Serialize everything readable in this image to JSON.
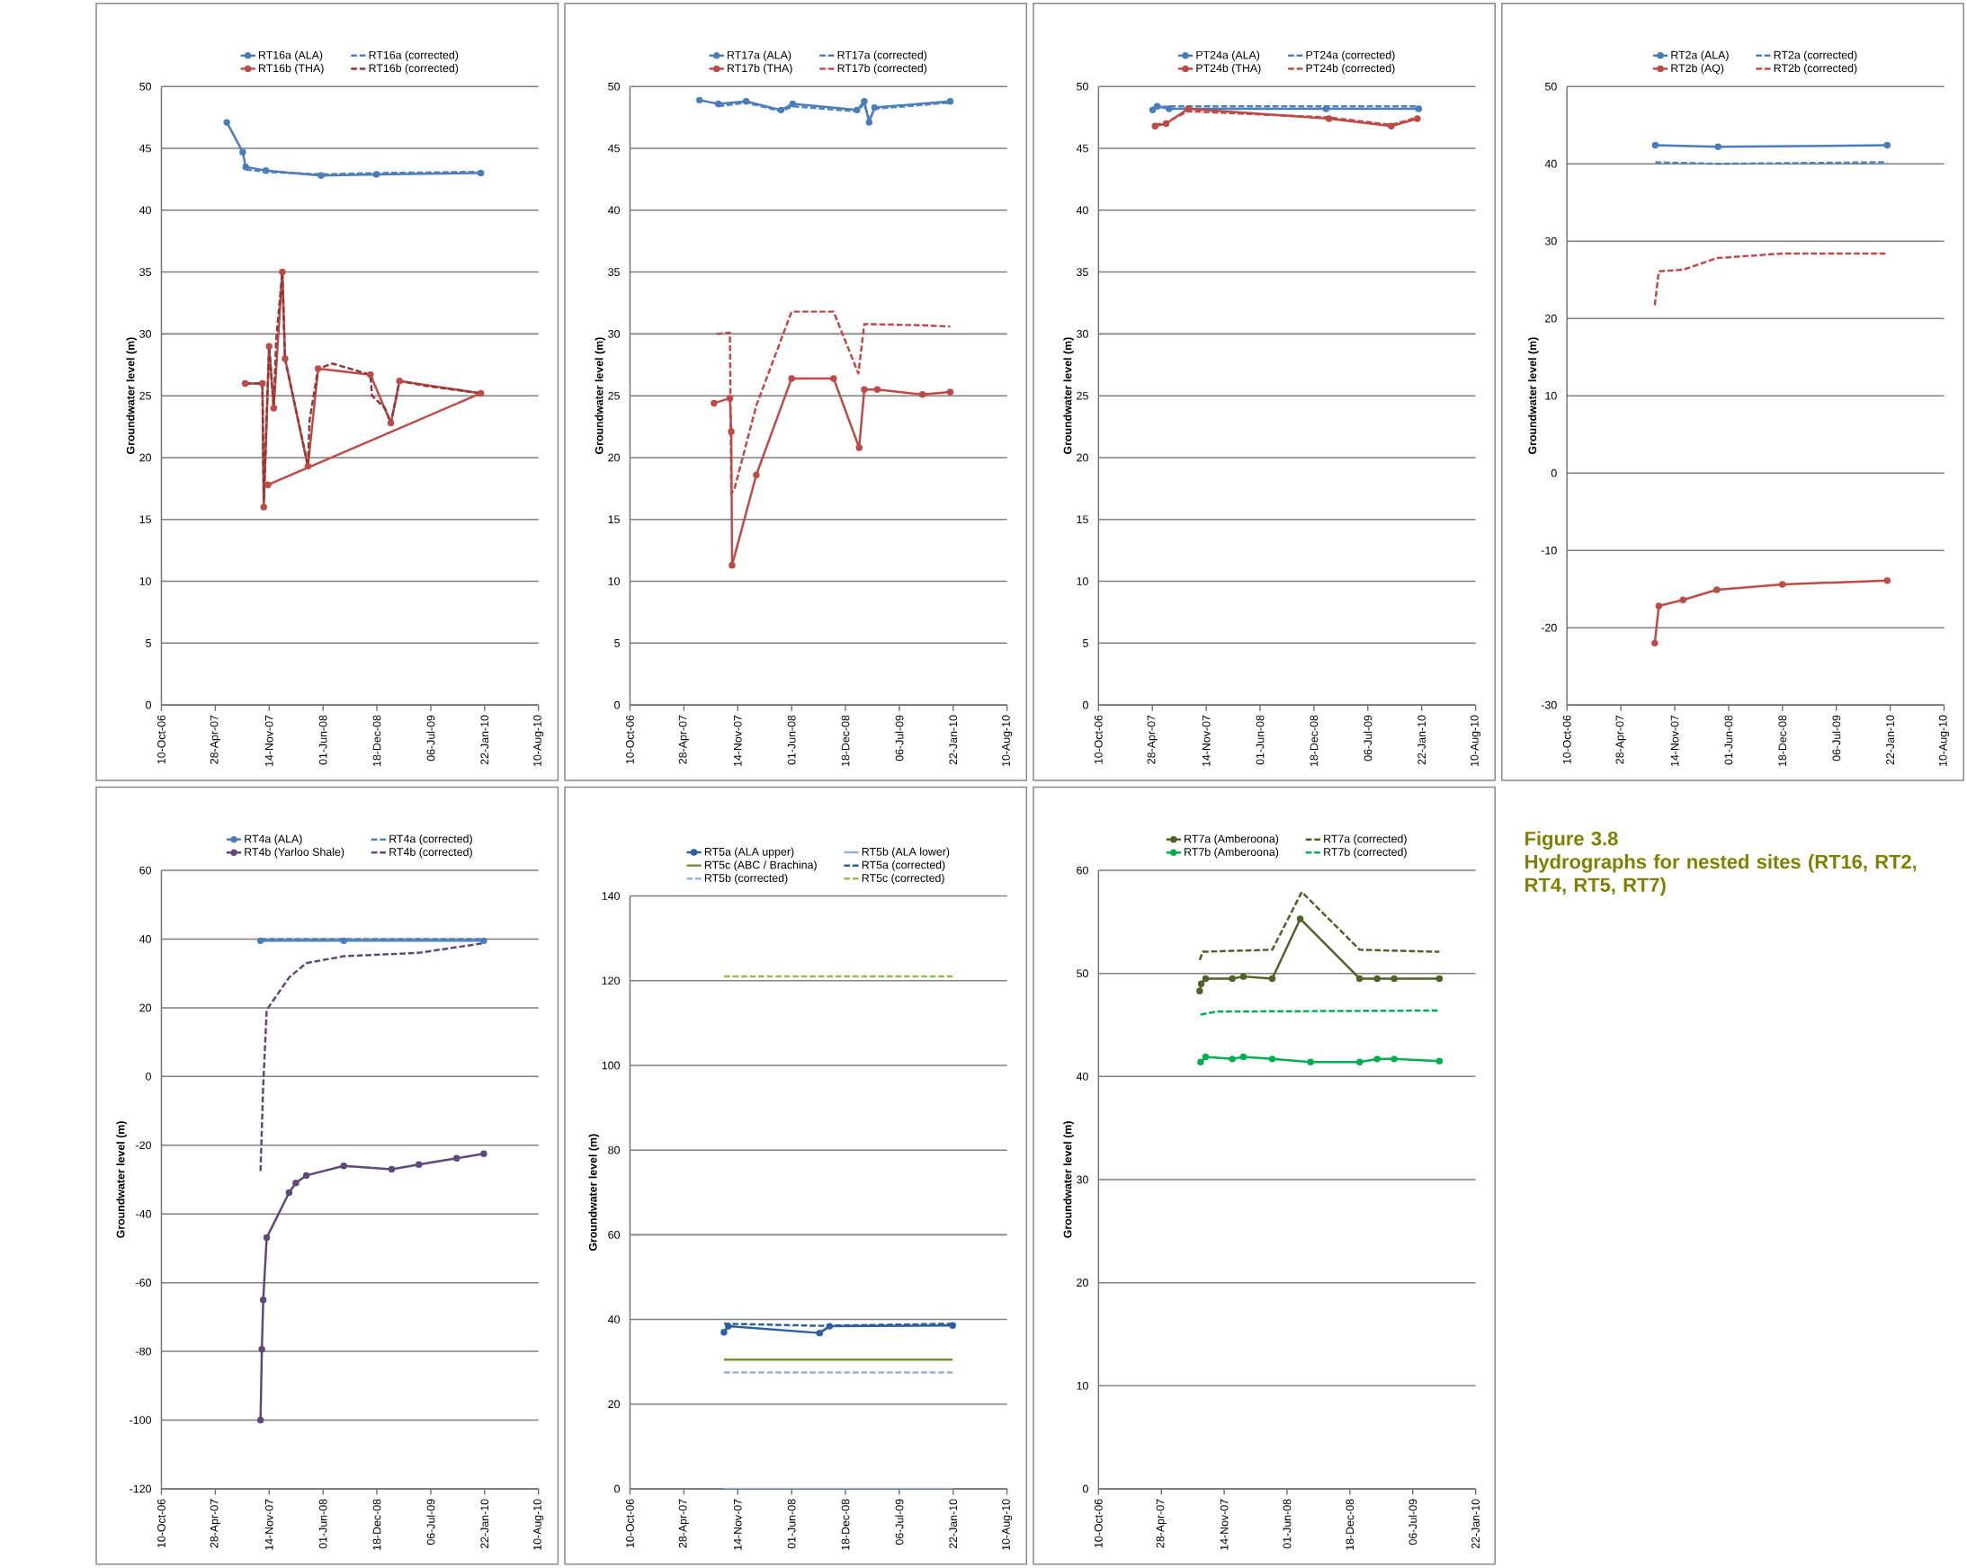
{
  "chart_data": [
    {
      "type": "line",
      "ylabel": "Groundwater level (m)",
      "grid": "y",
      "legend": "top",
      "xlim": [
        "2006-10-10",
        "2010-08-10"
      ],
      "ylim": [
        0,
        50
      ],
      "xticks": [
        {
          "value": "2006-10-10",
          "label": "10-Oct-06"
        },
        {
          "value": "2007-04-28",
          "label": "28-Apr-07"
        },
        {
          "value": "2007-11-14",
          "label": "14-Nov-07"
        },
        {
          "value": "2008-06-01",
          "label": "01-Jun-08"
        },
        {
          "value": "2008-12-18",
          "label": "18-Dec-08"
        },
        {
          "value": "2009-07-06",
          "label": "06-Jul-09"
        },
        {
          "value": "2010-01-22",
          "label": "22-Jan-10"
        },
        {
          "value": "2010-08-10",
          "label": "10-Aug-10"
        }
      ],
      "yticks": [
        0,
        5,
        10,
        15,
        20,
        25,
        30,
        35,
        40,
        45,
        50
      ],
      "series": [
        {
          "name": "RT16a (ALA)",
          "color": "#4a7ebb",
          "marker": "circle",
          "x": [
            "2007-06-10",
            "2007-08-08",
            "2007-08-19",
            "2007-11-02",
            "2008-05-25",
            "2008-12-16",
            "2010-01-08"
          ],
          "values": [
            47.1,
            44.7,
            43.5,
            43.2,
            42.8,
            42.9,
            43.0
          ]
        },
        {
          "name": "RT16a (corrected)",
          "color": "#4f81bd",
          "line_style": "dashed",
          "x": [
            "2007-08-19",
            "2007-11-02",
            "2008-05-25",
            "2008-12-16",
            "2010-01-08"
          ],
          "values": [
            43.3,
            43.1,
            42.9,
            43.0,
            43.1
          ]
        },
        {
          "name": "RT16b (THA)",
          "color": "#be4b48",
          "marker": "circle",
          "x": [
            "2007-08-17",
            "2007-10-20",
            "2007-10-25",
            "2007-11-14",
            "2007-12-01",
            "2008-01-02",
            "2008-01-12",
            "2008-04-06",
            "2008-05-14",
            "2008-11-24",
            "2009-02-08",
            "2009-03-12",
            "2010-01-08",
            "2007-11-10"
          ],
          "values": [
            26.0,
            26.0,
            16.0,
            29.0,
            24.0,
            35.0,
            28.0,
            19.3,
            27.2,
            26.7,
            22.8,
            26.2,
            25.2,
            17.8
          ]
        },
        {
          "name": "RT16b (corrected)",
          "color": "#953735",
          "line_style": "dashed",
          "x": [
            "2007-08-17",
            "2007-10-20",
            "2007-10-25",
            "2007-11-14",
            "2007-12-01",
            "2007-12-10",
            "2008-01-02",
            "2008-01-12",
            "2008-04-06",
            "2008-04-12",
            "2008-05-14",
            "2008-07-07",
            "2008-11-24",
            "2008-11-30",
            "2009-01-17",
            "2009-02-08",
            "2009-03-01",
            "2009-03-12",
            "2009-06-17",
            "2010-01-08"
          ],
          "values": [
            26.0,
            26.0,
            16.5,
            29.0,
            24.0,
            29.5,
            35.0,
            28.0,
            19.3,
            23.0,
            27.2,
            27.6,
            26.7,
            25.0,
            24.0,
            22.8,
            25.0,
            26.2,
            25.8,
            25.2
          ]
        }
      ]
    },
    {
      "type": "line",
      "ylabel": "Groundwater level (m)",
      "grid": "y",
      "legend": "top",
      "xlim": [
        "2006-10-10",
        "2010-08-10"
      ],
      "ylim": [
        0,
        50
      ],
      "xticks": [
        {
          "value": "2006-10-10",
          "label": "10-Oct-06"
        },
        {
          "value": "2007-04-28",
          "label": "28-Apr-07"
        },
        {
          "value": "2007-11-14",
          "label": "14-Nov-07"
        },
        {
          "value": "2008-06-01",
          "label": "01-Jun-08"
        },
        {
          "value": "2008-12-18",
          "label": "18-Dec-08"
        },
        {
          "value": "2009-07-06",
          "label": "06-Jul-09"
        },
        {
          "value": "2010-01-22",
          "label": "22-Jan-10"
        },
        {
          "value": "2010-08-10",
          "label": "10-Aug-10"
        }
      ],
      "yticks": [
        0,
        5,
        10,
        15,
        20,
        25,
        30,
        35,
        40,
        45,
        50
      ],
      "series": [
        {
          "name": "RT17a (ALA)",
          "color": "#4a7ebb",
          "marker": "circle",
          "x": [
            "2007-06-25",
            "2007-09-03",
            "2007-12-15",
            "2008-04-23",
            "2008-06-05",
            "2009-01-30",
            "2009-02-26",
            "2009-03-16",
            "2009-04-05",
            "2010-01-11"
          ],
          "values": [
            48.9,
            48.6,
            48.8,
            48.1,
            48.6,
            48.1,
            48.8,
            47.1,
            48.3,
            48.8
          ]
        },
        {
          "name": "RT17a (corrected)",
          "color": "#4f81bd",
          "line_style": "dashed",
          "x": [
            "2007-09-03",
            "2007-12-15",
            "2008-04-23",
            "2008-06-05",
            "2009-01-30",
            "2009-02-26",
            "2009-03-16",
            "2009-04-05",
            "2010-01-11"
          ],
          "values": [
            48.4,
            48.7,
            48.0,
            48.4,
            48.0,
            48.6,
            47.3,
            48.2,
            48.7
          ]
        },
        {
          "name": "RT17b (THA)",
          "color": "#be4b48",
          "marker": "circle",
          "x": [
            "2007-08-18",
            "2007-10-16",
            "2007-10-21",
            "2007-10-24",
            "2008-01-22",
            "2008-06-01",
            "2008-11-04",
            "2009-02-07",
            "2009-02-26",
            "2009-04-15",
            "2009-09-30",
            "2010-01-11"
          ],
          "values": [
            24.4,
            24.8,
            22.1,
            11.3,
            18.6,
            26.4,
            26.4,
            20.8,
            25.5,
            25.5,
            25.1,
            25.3
          ]
        },
        {
          "name": "RT17b (corrected)",
          "color": "#be4b48",
          "line_style": "dashed",
          "x": [
            "2007-08-28",
            "2007-10-16",
            "2007-10-21",
            "2007-11-01",
            "2008-01-22",
            "2008-06-01",
            "2008-11-04",
            "2009-02-04",
            "2009-02-26",
            "2009-09-25",
            "2010-01-11"
          ],
          "values": [
            30.0,
            30.1,
            17.1,
            17.4,
            24.2,
            31.8,
            31.8,
            26.8,
            30.8,
            30.7,
            30.6
          ]
        }
      ]
    },
    {
      "type": "line",
      "ylabel": "Groundwater level (m)",
      "grid": "y",
      "legend": "top",
      "xlim": [
        "2006-10-10",
        "2010-08-10"
      ],
      "ylim": [
        0,
        50
      ],
      "xticks": [
        {
          "value": "2006-10-10",
          "label": "10-Oct-06"
        },
        {
          "value": "2007-04-28",
          "label": "28-Apr-07"
        },
        {
          "value": "2007-11-14",
          "label": "14-Nov-07"
        },
        {
          "value": "2008-06-01",
          "label": "01-Jun-08"
        },
        {
          "value": "2008-12-18",
          "label": "18-Dec-08"
        },
        {
          "value": "2009-07-06",
          "label": "06-Jul-09"
        },
        {
          "value": "2010-01-22",
          "label": "22-Jan-10"
        },
        {
          "value": "2010-08-10",
          "label": "10-Aug-10"
        }
      ],
      "yticks": [
        0,
        5,
        10,
        15,
        20,
        25,
        30,
        35,
        40,
        45,
        50
      ],
      "series": [
        {
          "name": "PT24a (ALA)",
          "color": "#4a7ebb",
          "marker": "circle",
          "x": [
            "2007-04-29",
            "2007-05-16",
            "2007-06-29",
            "2009-02-01",
            "2010-01-11"
          ],
          "values": [
            48.1,
            48.4,
            48.2,
            48.2,
            48.2
          ]
        },
        {
          "name": "PT24a (corrected)",
          "color": "#4f81bd",
          "line_style": "dashed",
          "x": [
            "2007-04-29",
            "2007-06-29",
            "2009-02-01",
            "2010-01-11"
          ],
          "values": [
            48.3,
            48.4,
            48.4,
            48.4
          ]
        },
        {
          "name": "PT24b (THA)",
          "color": "#be4b48",
          "marker": "circle",
          "x": [
            "2007-05-08",
            "2007-06-18",
            "2007-09-08",
            "2009-02-12",
            "2009-10-01",
            "2010-01-06"
          ],
          "values": [
            46.8,
            47.0,
            48.2,
            47.4,
            46.8,
            47.4
          ]
        },
        {
          "name": "PT24b (corrected)",
          "color": "#be4b48",
          "line_style": "dashed",
          "x": [
            "2007-05-08",
            "2007-06-18",
            "2007-09-08",
            "2009-02-12",
            "2009-10-01",
            "2010-01-06"
          ],
          "values": [
            46.9,
            47.1,
            48.0,
            47.5,
            46.9,
            47.5
          ]
        }
      ]
    },
    {
      "type": "line",
      "ylabel": "Groundwater level (m)",
      "grid": "y",
      "legend": "top",
      "xlim": [
        "2006-10-10",
        "2010-08-10"
      ],
      "ylim": [
        -30,
        50
      ],
      "xticks": [
        {
          "value": "2006-10-10",
          "label": "10-Oct-06"
        },
        {
          "value": "2007-04-28",
          "label": "28-Apr-07"
        },
        {
          "value": "2007-11-14",
          "label": "14-Nov-07"
        },
        {
          "value": "2008-06-01",
          "label": "01-Jun-08"
        },
        {
          "value": "2008-12-18",
          "label": "18-Dec-08"
        },
        {
          "value": "2009-07-06",
          "label": "06-Jul-09"
        },
        {
          "value": "2010-01-22",
          "label": "22-Jan-10"
        },
        {
          "value": "2010-08-10",
          "label": "10-Aug-10"
        }
      ],
      "yticks": [
        -30,
        -20,
        -10,
        0,
        10,
        20,
        30,
        40,
        50
      ],
      "series": [
        {
          "name": "RT2a (ALA)",
          "color": "#4a7ebb",
          "marker": "circle",
          "x": [
            "2007-09-03",
            "2008-04-23",
            "2010-01-11"
          ],
          "values": [
            42.4,
            42.2,
            42.4
          ]
        },
        {
          "name": "RT2a (corrected)",
          "color": "#4f81bd",
          "line_style": "dashed",
          "x": [
            "2007-09-03",
            "2008-04-23",
            "2010-01-11"
          ],
          "values": [
            40.2,
            40.0,
            40.2
          ]
        },
        {
          "name": "RT2b (AQ)",
          "color": "#be4b48",
          "marker": "circle",
          "x": [
            "2007-09-01",
            "2007-09-16",
            "2007-12-15",
            "2008-04-18",
            "2008-12-18",
            "2010-01-11"
          ],
          "values": [
            -22.0,
            -17.2,
            -16.4,
            -15.1,
            -14.4,
            -13.9
          ]
        },
        {
          "name": "RT2b (corrected)",
          "color": "#be4b48",
          "line_style": "dashed",
          "x": [
            "2007-09-01",
            "2007-09-16",
            "2007-12-15",
            "2008-04-18",
            "2008-12-18",
            "2010-01-11"
          ],
          "values": [
            21.7,
            26.1,
            26.3,
            27.8,
            28.4,
            28.4
          ]
        }
      ]
    },
    {
      "type": "line",
      "ylabel": "Groundwater level (m)",
      "grid": "y",
      "legend": "top",
      "xlim": [
        "2006-10-10",
        "2010-08-10"
      ],
      "ylim": [
        -120,
        60
      ],
      "xticks": [
        {
          "value": "2006-10-10",
          "label": "10-Oct-06"
        },
        {
          "value": "2007-04-28",
          "label": "28-Apr-07"
        },
        {
          "value": "2007-11-14",
          "label": "14-Nov-07"
        },
        {
          "value": "2008-06-01",
          "label": "01-Jun-08"
        },
        {
          "value": "2008-12-18",
          "label": "18-Dec-08"
        },
        {
          "value": "2009-07-06",
          "label": "06-Jul-09"
        },
        {
          "value": "2010-01-22",
          "label": "22-Jan-10"
        },
        {
          "value": "2010-08-10",
          "label": "10-Aug-10"
        }
      ],
      "yticks": [
        -120,
        -100,
        -80,
        -60,
        -40,
        -20,
        0,
        20,
        40,
        60
      ],
      "series": [
        {
          "name": "RT4a (ALA)",
          "color": "#4a7ebb",
          "marker": "circle",
          "x": [
            "2007-10-13",
            "2008-08-17",
            "2010-01-19"
          ],
          "values": [
            39.5,
            39.5,
            39.5
          ]
        },
        {
          "name": "RT4a (corrected)",
          "color": "#4f81bd",
          "line_style": "dashed",
          "x": [
            "2007-10-13",
            "2008-08-17",
            "2010-01-19"
          ],
          "values": [
            40.0,
            40.0,
            40.0
          ]
        },
        {
          "name": "RT4b (Yarloo Shale)",
          "color": "#5f497a",
          "marker": "circle",
          "x": [
            "2007-10-13",
            "2007-10-18",
            "2007-10-23",
            "2007-11-05",
            "2008-01-27",
            "2008-02-21",
            "2008-03-31",
            "2008-08-17",
            "2009-02-11",
            "2009-05-23",
            "2009-10-10",
            "2010-01-19"
          ],
          "values": [
            -100,
            -79.4,
            -65,
            -46.9,
            -33.8,
            -31,
            -28.8,
            -26,
            -27,
            -25.6,
            -23.8,
            -22.5
          ]
        },
        {
          "name": "RT4b (corrected)",
          "color": "#604a7b",
          "line_style": "dashed",
          "x": [
            "2007-10-13",
            "2007-10-23",
            "2007-11-05",
            "2008-01-27",
            "2008-03-31",
            "2008-08-17",
            "2009-05-23",
            "2010-01-19"
          ],
          "values": [
            -27.5,
            -2.5,
            19.4,
            28.8,
            33,
            35,
            36,
            38.8
          ]
        }
      ]
    },
    {
      "type": "line",
      "ylabel": "Groundwater level (m)",
      "grid": "y",
      "legend": "top",
      "xlim": [
        "2006-10-10",
        "2010-08-10"
      ],
      "ylim": [
        0,
        140
      ],
      "xticks": [
        {
          "value": "2006-10-10",
          "label": "10-Oct-06"
        },
        {
          "value": "2007-04-28",
          "label": "28-Apr-07"
        },
        {
          "value": "2007-11-14",
          "label": "14-Nov-07"
        },
        {
          "value": "2008-06-01",
          "label": "01-Jun-08"
        },
        {
          "value": "2008-12-18",
          "label": "18-Dec-08"
        },
        {
          "value": "2009-07-06",
          "label": "06-Jul-09"
        },
        {
          "value": "2010-01-22",
          "label": "22-Jan-10"
        },
        {
          "value": "2010-08-10",
          "label": "10-Aug-10"
        }
      ],
      "yticks": [
        0,
        20,
        40,
        60,
        80,
        100,
        120,
        140
      ],
      "series": [
        {
          "name": "RT5a (ALA upper)",
          "color": "#2c5fa0",
          "marker": "circle",
          "x": [
            "2007-09-24",
            "2007-10-10",
            "2008-09-13",
            "2008-10-20",
            "2010-01-20"
          ],
          "values": [
            37.0,
            38.4,
            36.8,
            38.4,
            38.6
          ]
        },
        {
          "name": "RT5b (ALA lower)",
          "color": "#95b3d7",
          "x": [
            "2007-09-24",
            "2010-01-20"
          ],
          "values": [
            0,
            0
          ]
        },
        {
          "name": "RT5c (ABC / Brachina)",
          "color": "#77933c",
          "x": [
            "2007-09-24",
            "2010-01-20"
          ],
          "values": [
            30.5,
            30.5
          ]
        },
        {
          "name": "RT5a (corrected)",
          "color": "#2c5fa0",
          "line_style": "dashed",
          "x": [
            "2007-09-24",
            "2008-09-13",
            "2010-01-20"
          ],
          "values": [
            39.0,
            38.5,
            39.0
          ]
        },
        {
          "name": "RT5b (corrected)",
          "color": "#95b3d7",
          "line_style": "dashed",
          "x": [
            "2007-09-24",
            "2010-01-20"
          ],
          "values": [
            27.5,
            27.5
          ]
        },
        {
          "name": "RT5c (corrected)",
          "color": "#9bbb59",
          "line_style": "dashed",
          "x": [
            "2007-09-24",
            "2010-01-20"
          ],
          "values": [
            121,
            121
          ]
        }
      ]
    },
    {
      "type": "line",
      "ylabel": "Groundwater level (m)",
      "grid": "y",
      "legend": "top",
      "xlim": [
        "2006-10-10",
        "2010-01-22"
      ],
      "ylim": [
        0,
        60
      ],
      "xticks": [
        {
          "value": "2006-10-10",
          "label": "10-Oct-06"
        },
        {
          "value": "2007-04-28",
          "label": "28-Apr-07"
        },
        {
          "value": "2007-11-14",
          "label": "14-Nov-07"
        },
        {
          "value": "2008-06-01",
          "label": "01-Jun-08"
        },
        {
          "value": "2008-12-18",
          "label": "18-Dec-08"
        },
        {
          "value": "2009-07-06",
          "label": "06-Jul-09"
        },
        {
          "value": "2010-01-22",
          "label": "22-Jan-10"
        }
      ],
      "yticks": [
        0,
        10,
        20,
        30,
        40,
        50,
        60
      ],
      "series": [
        {
          "name": "RT7a (Amberoona)",
          "color": "#4f6228",
          "marker": "circle",
          "x": [
            "2007-08-28",
            "2007-09-02",
            "2007-09-16",
            "2007-12-10",
            "2008-01-14",
            "2008-04-15",
            "2008-07-13",
            "2009-01-18",
            "2009-03-15",
            "2009-05-08",
            "2009-09-29"
          ],
          "values": [
            48.3,
            49.0,
            49.5,
            49.5,
            49.7,
            49.5,
            55.3,
            49.5,
            49.5,
            49.5,
            49.5
          ]
        },
        {
          "name": "RT7a (corrected)",
          "color": "#4f6228",
          "line_style": "dashed",
          "x": [
            "2007-08-28",
            "2007-09-07",
            "2008-04-15",
            "2008-07-18",
            "2009-01-18",
            "2009-09-29"
          ],
          "values": [
            51.3,
            52.1,
            52.3,
            57.9,
            52.3,
            52.1
          ]
        },
        {
          "name": "RT7b (Amberoona)",
          "color": "#00b050",
          "marker": "circle",
          "x": [
            "2007-08-31",
            "2007-09-16",
            "2007-12-10",
            "2008-01-14",
            "2008-04-15",
            "2008-08-15",
            "2009-01-18",
            "2009-03-15",
            "2009-05-08",
            "2009-09-29"
          ],
          "values": [
            41.4,
            41.9,
            41.7,
            41.9,
            41.7,
            41.4,
            41.4,
            41.7,
            41.7,
            41.5
          ]
        },
        {
          "name": "RT7b (corrected)",
          "color": "#00b050",
          "line_style": "dashed",
          "x": [
            "2007-08-31",
            "2007-10-20",
            "2009-09-29"
          ],
          "values": [
            46.0,
            46.3,
            46.4
          ]
        }
      ]
    },
    {
      "type": "other",
      "title": "Figure 3.8",
      "subtitle": "Hydrographs for nested sites (RT16, RT2, RT4, RT5, RT7)"
    }
  ]
}
